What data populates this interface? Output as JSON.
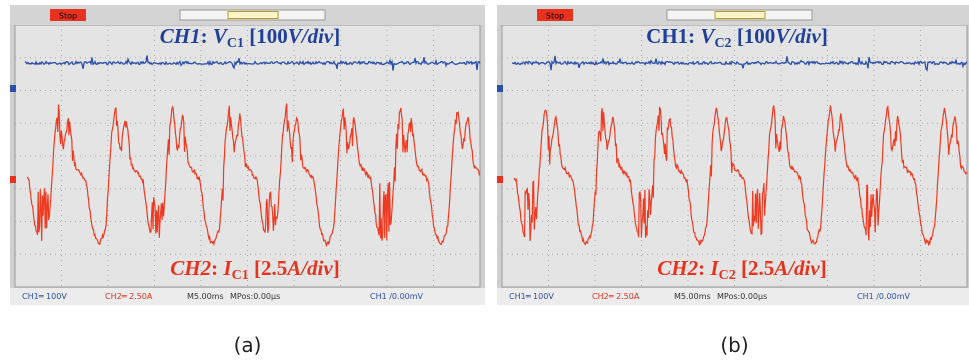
{
  "panels": [
    {
      "caption": "(a)",
      "stop_button": "Stop",
      "ch1_label": {
        "name": "CH1",
        "sep": ": ",
        "symbol": "V",
        "subscript": "C1",
        "scale_open": " [100",
        "scale_unit": "V/div",
        "scale_close": "]"
      },
      "ch2_label": {
        "name": "CH2",
        "sep": ": ",
        "symbol": "I",
        "subscript": "C1",
        "scale_open": " [2.5",
        "scale_unit": "A/div",
        "scale_close": "]"
      },
      "status_bar": {
        "ch1": "CH1═ 100V",
        "ch2": "CH2═ 2.50A",
        "timebase": "M5.00ms",
        "position": "MPos:0.00µs",
        "trigger": "CH1 /0.00mV"
      }
    },
    {
      "caption": "(b)",
      "stop_button": "Stop",
      "ch1_label": {
        "name": "CH1",
        "sep": ": ",
        "symbol": "V",
        "subscript": "C2",
        "scale_open": " [100",
        "scale_unit": "V/div",
        "scale_close": "]"
      },
      "ch2_label": {
        "name": "CH2",
        "sep": ": ",
        "symbol": "I",
        "subscript": "C2",
        "scale_open": " [2.5",
        "scale_unit": "A/div",
        "scale_close": "]"
      },
      "status_bar": {
        "ch1": "CH1═ 100V",
        "ch2": "CH2═ 2.50A",
        "timebase": "M5.00ms",
        "position": "MPos:0.00µs",
        "trigger": "CH1 /0.00mV"
      }
    }
  ]
}
